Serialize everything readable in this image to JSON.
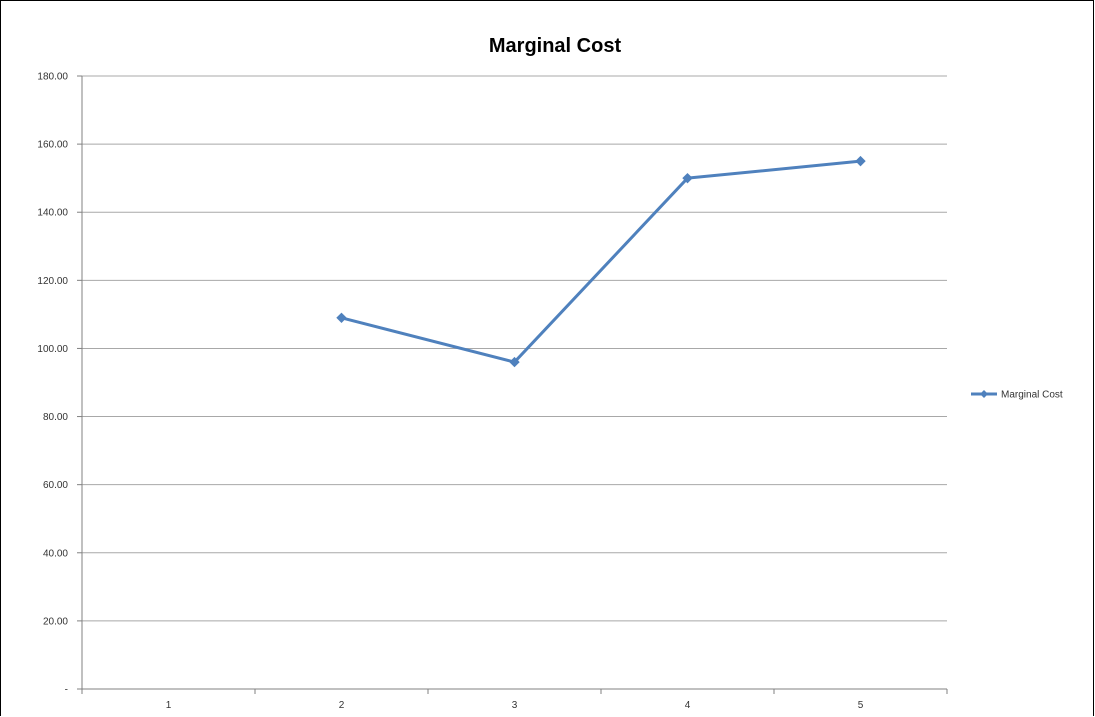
{
  "chart_data": {
    "type": "line",
    "title": "Marginal Cost",
    "categories": [
      "1",
      "2",
      "3",
      "4",
      "5"
    ],
    "y_tick_labels": [
      "-",
      "20.00",
      "40.00",
      "60.00",
      "80.00",
      "100.00",
      "120.00",
      "140.00",
      "160.00",
      "180.00"
    ],
    "ylim": [
      0,
      180
    ],
    "y_step": 20,
    "grid": true,
    "legend_position": "right",
    "series": [
      {
        "name": "Marginal Cost",
        "values": [
          null,
          109,
          96,
          150,
          155
        ],
        "color": "#4f81bd",
        "marker": "diamond"
      }
    ]
  }
}
